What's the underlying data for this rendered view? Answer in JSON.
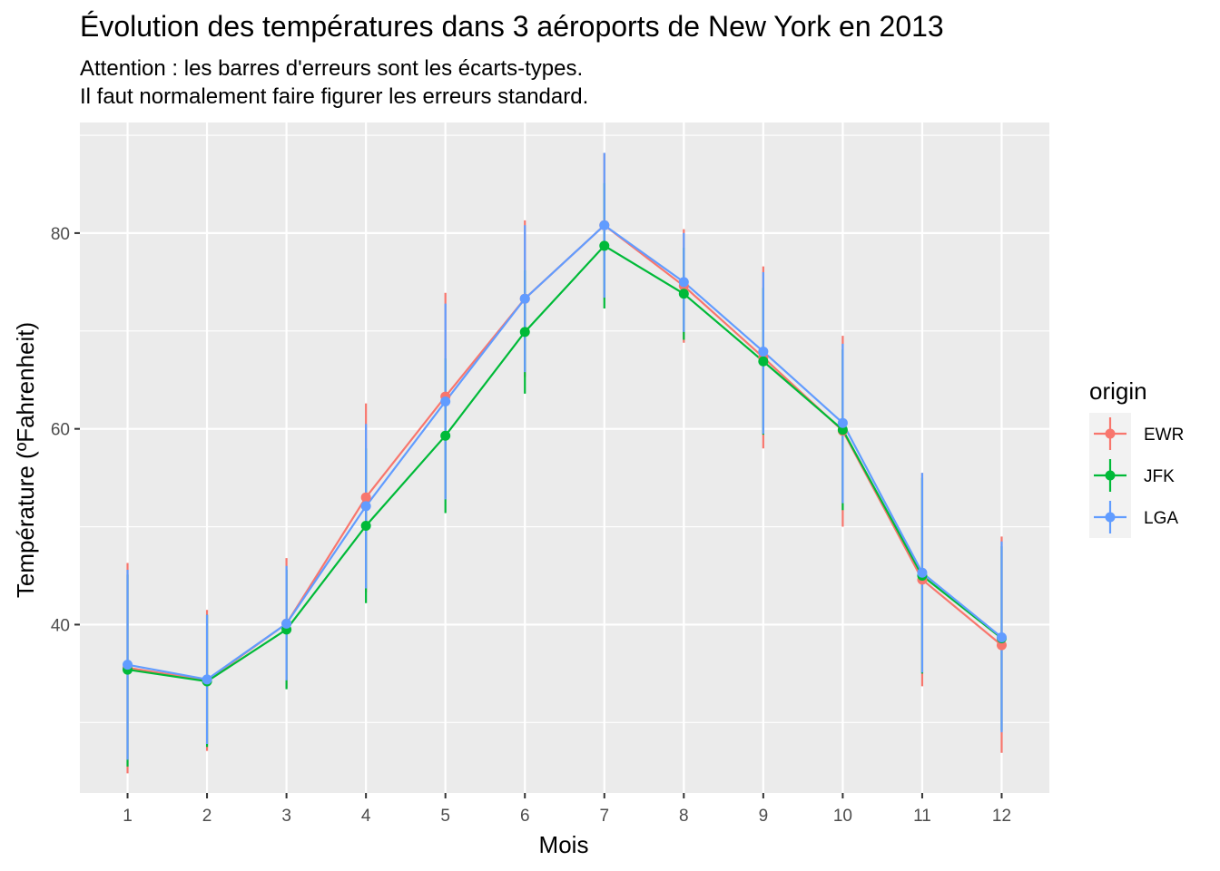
{
  "chart_data": {
    "type": "line",
    "title": "Évolution des températures dans 3 aéroports de New York en 2013",
    "subtitle_lines": [
      "Attention : les barres d'erreurs sont les écarts-types.",
      "Il faut normalement faire figurer les erreurs standard."
    ],
    "xlabel": "Mois",
    "ylabel": "Température (ºFahrenheit)",
    "x": [
      1,
      2,
      3,
      4,
      5,
      6,
      7,
      8,
      9,
      10,
      11,
      12
    ],
    "x_tick_labels": [
      "1",
      "2",
      "3",
      "4",
      "5",
      "6",
      "7",
      "8",
      "9",
      "10",
      "11",
      "12"
    ],
    "y_ticks": [
      40,
      60,
      80
    ],
    "y_tick_labels": [
      "40",
      "60",
      "80"
    ],
    "xlim": [
      0.4,
      12.6
    ],
    "ylim": [
      22.8,
      91.3
    ],
    "grid": true,
    "legend": {
      "title": "origin",
      "position": "right"
    },
    "series": [
      {
        "name": "EWR",
        "color": "#F8766D",
        "values": [
          35.6,
          34.3,
          40.1,
          53.0,
          63.3,
          73.3,
          80.8,
          74.6,
          67.3,
          59.8,
          44.6,
          37.9
        ],
        "error_low": [
          24.8,
          27.1,
          33.5,
          43.3,
          52.9,
          65.3,
          73.3,
          68.8,
          58.0,
          50.0,
          33.7,
          26.9
        ],
        "error_high": [
          46.3,
          41.5,
          46.8,
          62.6,
          73.9,
          81.3,
          88.2,
          80.4,
          76.6,
          69.5,
          55.5,
          49.0
        ]
      },
      {
        "name": "JFK",
        "color": "#00BA38",
        "values": [
          35.4,
          34.2,
          39.5,
          50.1,
          59.3,
          69.9,
          78.7,
          73.8,
          66.9,
          59.9,
          45.0,
          38.6
        ],
        "error_low": [
          25.5,
          27.5,
          33.4,
          42.2,
          51.4,
          63.6,
          72.3,
          69.1,
          59.4,
          51.7,
          35.0,
          29.2
        ],
        "error_high": [
          45.1,
          41.0,
          45.6,
          58.0,
          67.2,
          76.2,
          85.1,
          78.5,
          74.4,
          68.1,
          55.0,
          48.0
        ]
      },
      {
        "name": "LGA",
        "color": "#619CFF",
        "values": [
          35.9,
          34.4,
          40.1,
          52.1,
          62.8,
          73.3,
          80.8,
          75.0,
          67.9,
          60.6,
          45.3,
          38.7
        ],
        "error_low": [
          26.2,
          27.8,
          34.3,
          43.7,
          52.8,
          65.8,
          73.4,
          69.9,
          59.5,
          52.4,
          35.1,
          29.0
        ],
        "error_high": [
          45.6,
          41.0,
          46.0,
          60.5,
          72.8,
          80.8,
          88.2,
          80.0,
          76.0,
          68.7,
          55.5,
          48.5
        ]
      }
    ]
  }
}
